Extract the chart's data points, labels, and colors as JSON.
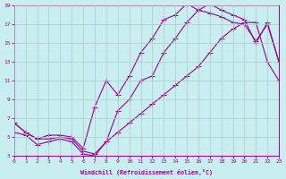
{
  "xlabel": "Windchill (Refroidissement éolien,°C)",
  "bg_color": "#c8eef0",
  "line_color": "#990099",
  "grid_color": "#b0c8c8",
  "xlim": [
    0,
    23
  ],
  "ylim": [
    3,
    19
  ],
  "xticks": [
    0,
    1,
    2,
    3,
    4,
    5,
    6,
    7,
    8,
    9,
    10,
    11,
    12,
    13,
    14,
    15,
    16,
    17,
    18,
    19,
    20,
    21,
    22,
    23
  ],
  "yticks": [
    3,
    5,
    7,
    9,
    11,
    13,
    15,
    17,
    19
  ],
  "line1_x": [
    0,
    1,
    2,
    3,
    4,
    5,
    6,
    7,
    8,
    9,
    10,
    11,
    12,
    13,
    14,
    15,
    16,
    17,
    18,
    19,
    20,
    21,
    22,
    23
  ],
  "line1_y": [
    6.5,
    5.5,
    4.8,
    4.8,
    5.0,
    4.8,
    3.5,
    3.2,
    4.5,
    7.8,
    9.0,
    11.0,
    11.5,
    14.0,
    15.5,
    17.2,
    18.5,
    19.2,
    18.5,
    18.0,
    17.5,
    15.0,
    17.2,
    13.0
  ],
  "line2_x": [
    0,
    1,
    2,
    3,
    4,
    5,
    6,
    7,
    8,
    9,
    10,
    11,
    12,
    13,
    14,
    15,
    16,
    17,
    18,
    19,
    20,
    21,
    22,
    23
  ],
  "line2_y": [
    6.5,
    5.5,
    4.8,
    5.2,
    5.2,
    5.0,
    3.8,
    8.2,
    11.0,
    9.5,
    11.5,
    14.0,
    15.5,
    17.5,
    18.0,
    19.2,
    18.5,
    18.2,
    17.8,
    17.2,
    17.0,
    15.2,
    17.0,
    13.0
  ],
  "line3_x": [
    0,
    1,
    2,
    3,
    4,
    5,
    6,
    7,
    8,
    9,
    10,
    11,
    12,
    13,
    14,
    15,
    16,
    17,
    18,
    19,
    20,
    21,
    22,
    23
  ],
  "line3_y": [
    5.5,
    5.2,
    4.2,
    4.5,
    4.8,
    4.5,
    3.2,
    3.0,
    4.5,
    5.5,
    6.5,
    7.5,
    8.5,
    9.5,
    10.5,
    11.5,
    12.5,
    14.0,
    15.5,
    16.5,
    17.2,
    17.2,
    13.0,
    11.0
  ]
}
